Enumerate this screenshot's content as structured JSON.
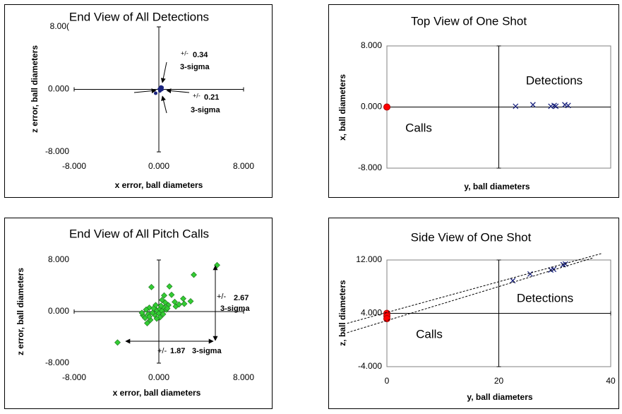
{
  "chart_data": [
    {
      "type": "scatter",
      "title": "End View of All Detections",
      "x_label": "x error, ball diameters",
      "y_label": "z error, ball diameters",
      "xlim": [
        -8,
        8
      ],
      "ylim": [
        -8,
        8
      ],
      "xticks": [
        {
          "value": -8,
          "label": "-8.000"
        },
        {
          "value": 0,
          "label": "0.000"
        },
        {
          "value": 8,
          "label": "8.000"
        }
      ],
      "yticks": [
        {
          "value": -8,
          "label": "-8.000"
        },
        {
          "value": 0,
          "label": "0.000"
        },
        {
          "value": 8,
          "label": "8.00("
        }
      ],
      "axis_cross": [
        0,
        0
      ],
      "annotations": [
        "+/-",
        "0.34",
        "3-sigma",
        "+/-",
        "0.21",
        "3-sigma"
      ],
      "series": [
        {
          "color": "#1a237e",
          "marker": "dot",
          "x": [
            0.1,
            0.2,
            0.3,
            0.15,
            0.25,
            0.2,
            0.05,
            0.3,
            0.22,
            0.18,
            0.28,
            0.12,
            0.2,
            0.1,
            -0.3
          ],
          "values": [
            0.1,
            0.2,
            0.0,
            -0.1,
            0.15,
            0.3,
            0.05,
            0.25,
            -0.05,
            0.1,
            0.2,
            0.0,
            0.05,
            -0.2,
            -0.5
          ]
        }
      ]
    },
    {
      "type": "scatter",
      "title": "Top View of One Shot",
      "x_label": "y, ball diameters",
      "y_label": "x, ball diameters",
      "xlim": [
        0,
        40
      ],
      "ylim": [
        -8,
        8
      ],
      "yticks": [
        {
          "value": -8,
          "label": "-8.000"
        },
        {
          "value": 0,
          "label": "0.000"
        },
        {
          "value": 8,
          "label": "8.000"
        }
      ],
      "axis_cross": [
        20,
        0
      ],
      "series": [
        {
          "name": "Calls",
          "color": "#ff0000",
          "marker": "circle",
          "x": [
            0
          ],
          "values": [
            0
          ]
        },
        {
          "name": "Detections",
          "color": "#1a237e",
          "marker": "x",
          "x": [
            23.0,
            26.1,
            29.3,
            29.9,
            30.2,
            31.8,
            32.4
          ],
          "values": [
            0.1,
            0.3,
            0.1,
            0.2,
            0.1,
            0.3,
            0.2
          ]
        }
      ]
    },
    {
      "type": "scatter",
      "title": "End View of All Pitch Calls",
      "x_label": "x error, ball diameters",
      "y_label": "z error, ball diameters",
      "xlim": [
        -8,
        8
      ],
      "ylim": [
        -8,
        8
      ],
      "xticks": [
        {
          "value": -8,
          "label": "-8.000"
        },
        {
          "value": 0,
          "label": "0.000"
        },
        {
          "value": 8,
          "label": "8.000"
        }
      ],
      "yticks": [
        {
          "value": -8,
          "label": "-8.000"
        },
        {
          "value": 0,
          "label": "0.000"
        },
        {
          "value": 8,
          "label": "8.000"
        }
      ],
      "axis_cross": [
        0,
        0
      ],
      "annotations": [
        "+/-",
        "2.67",
        "3-sigma",
        "+/-",
        "1.87",
        "3-sigma"
      ],
      "series": [
        {
          "color": "#33cc33",
          "marker": "diamond",
          "x": [
            -3.9,
            3.3,
            5.5,
            -0.7,
            1.0,
            2.3,
            1.5,
            3.0,
            2.4,
            0.5,
            1.2,
            -0.9,
            -1.2,
            -1.5,
            -1.3,
            -0.8,
            -0.4,
            -0.2,
            0.1,
            0.3,
            0.5,
            0.7,
            -0.6,
            -1.0,
            0.0,
            0.2,
            0.9,
            -0.3,
            0.4,
            -0.9,
            -1.6,
            0.8,
            1.6,
            -0.5,
            0.6,
            -1.1,
            0.1,
            1.9,
            -0.2,
            0.3
          ],
          "values": [
            -4.8,
            5.7,
            7.2,
            3.8,
            3.9,
            2.0,
            1.5,
            1.6,
            1.2,
            2.5,
            2.6,
            0.6,
            0.3,
            -0.6,
            -1.0,
            -1.3,
            -0.5,
            0.2,
            0.4,
            0.1,
            0.6,
            0.3,
            -0.2,
            -0.4,
            -0.3,
            0.9,
            1.0,
            1.0,
            -0.4,
            -0.8,
            -0.2,
            0.5,
            0.8,
            0.5,
            1.4,
            -1.8,
            -0.9,
            1.1,
            -1.1,
            1.8
          ]
        }
      ]
    },
    {
      "type": "scatter",
      "title": "Side View of One Shot",
      "x_label": "y, ball diameters",
      "y_label": "z, ball diameters",
      "xlim": [
        0,
        40
      ],
      "ylim": [
        -4,
        12
      ],
      "xticks": [
        0,
        20,
        40
      ],
      "yticks": [
        {
          "value": -4,
          "label": "-4.000"
        },
        {
          "value": 4,
          "label": "4.000"
        },
        {
          "value": 12,
          "label": "12.000"
        }
      ],
      "axis_cross": [
        20,
        4
      ],
      "series": [
        {
          "name": "Calls",
          "color": "#ff0000",
          "marker": "circle",
          "x": [
            0,
            0,
            0
          ],
          "values": [
            4.0,
            3.6,
            3.2
          ]
        },
        {
          "name": "Detections",
          "color": "#1a237e",
          "marker": "x",
          "x": [
            22.5,
            25.6,
            29.3,
            29.8,
            31.5,
            31.9
          ],
          "values": [
            8.9,
            9.9,
            10.5,
            10.6,
            11.3,
            11.4
          ]
        },
        {
          "color": "#000000",
          "marker": "dashed",
          "x": [
            -7.1,
            38.5
          ],
          "values": [
            2.5,
            13.0
          ]
        },
        {
          "color": "#000000",
          "marker": "dashed",
          "x": [
            -7.1,
            36.8
          ],
          "values": [
            1.1,
            12.3
          ]
        }
      ]
    }
  ]
}
